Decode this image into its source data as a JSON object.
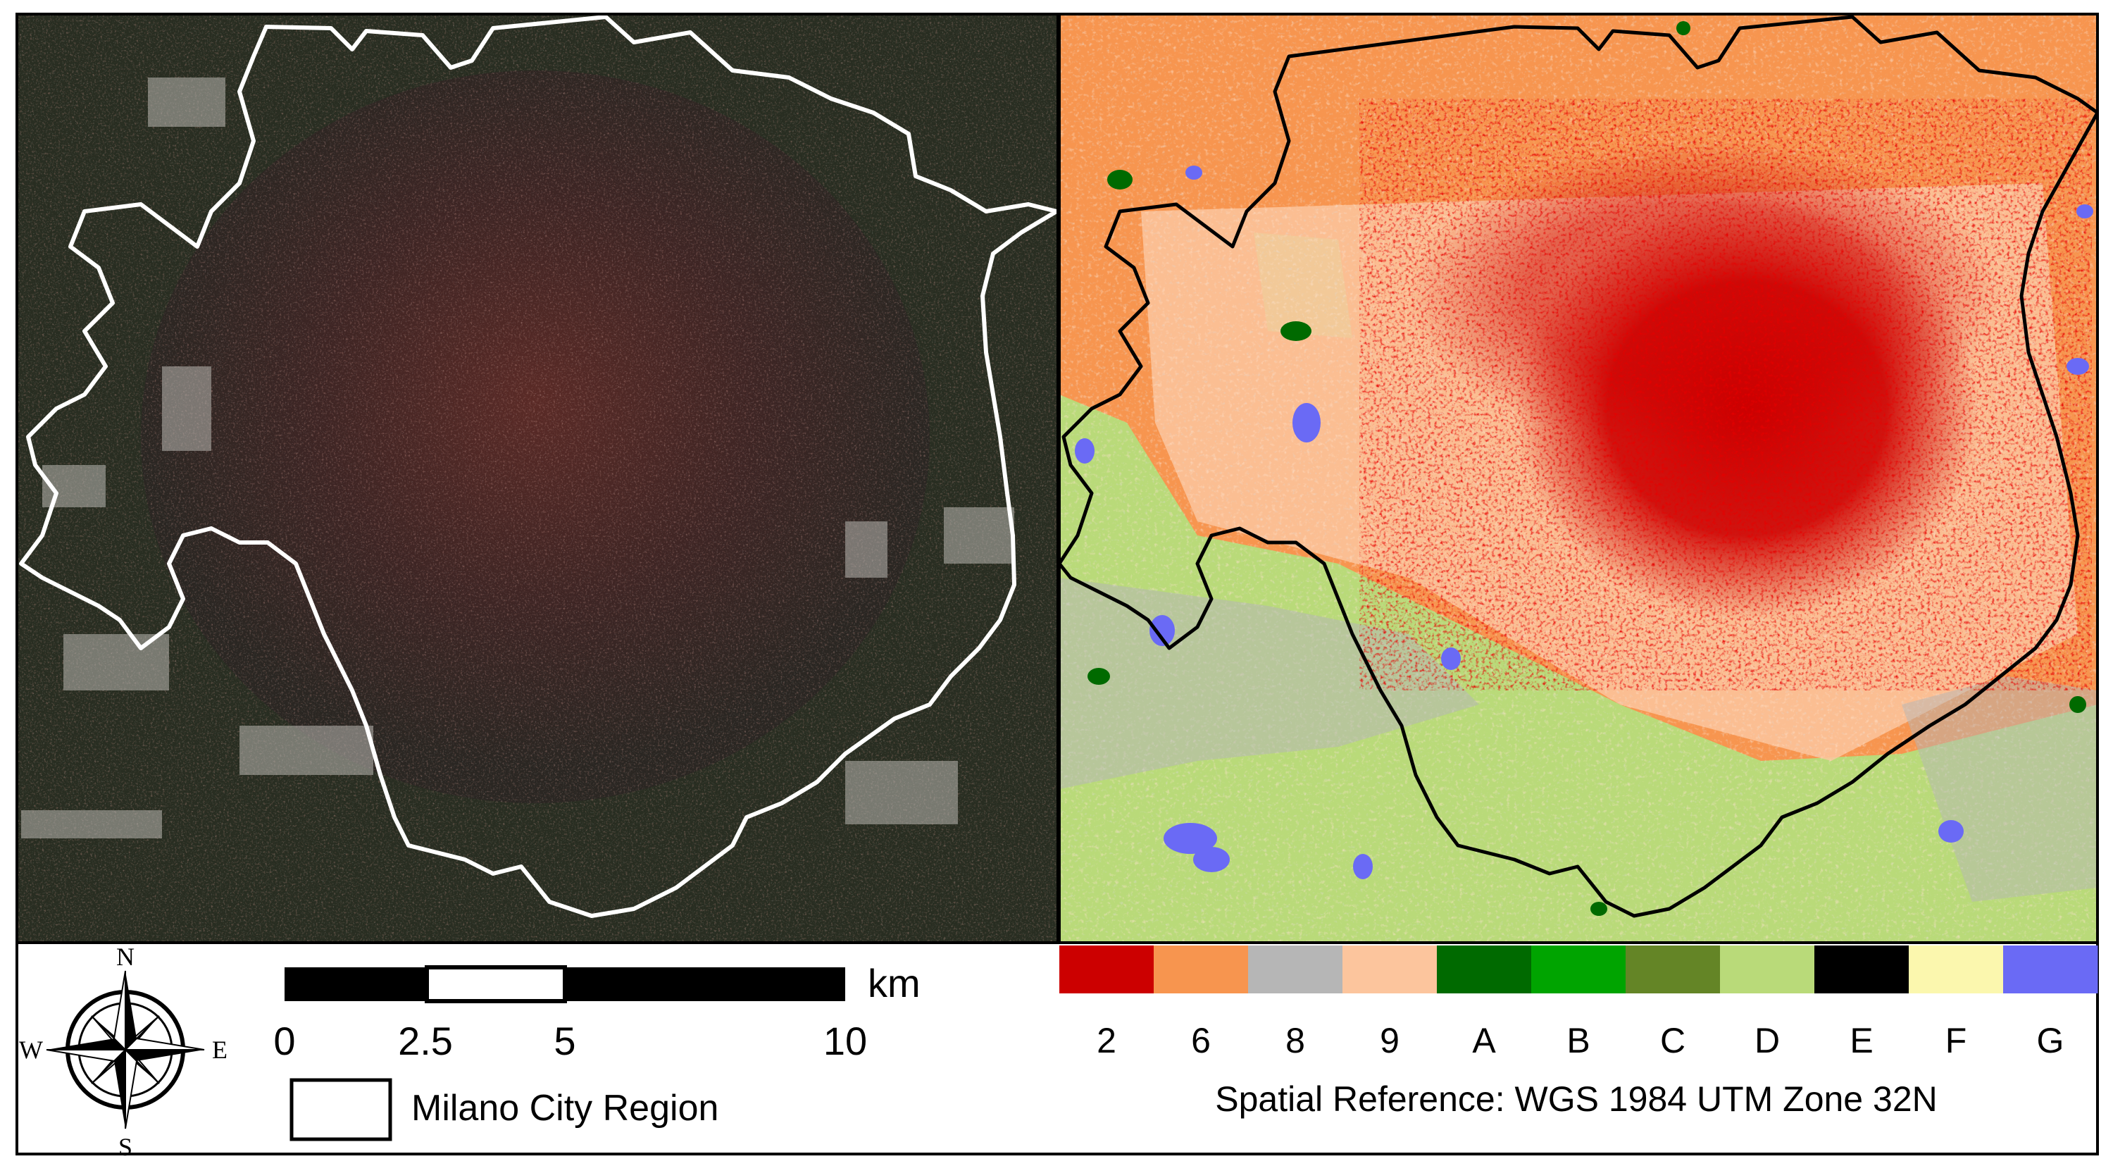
{
  "panels": {
    "left": {
      "kind": "satellite-image",
      "boundary_color": "#ffffff"
    },
    "right": {
      "kind": "lcz-classification-map",
      "boundary_color": "#000000"
    }
  },
  "north_arrow": {
    "n": "N",
    "s": "S",
    "e": "E",
    "w": "W"
  },
  "scale_bar": {
    "ticks": [
      "0",
      "2.5",
      "5",
      "10"
    ],
    "unit": "km"
  },
  "region_legend": {
    "label": "Milano City Region"
  },
  "classes": [
    {
      "code": "2",
      "color": "#cc0000"
    },
    {
      "code": "6",
      "color": "#f7954f"
    },
    {
      "code": "8",
      "color": "#b6b6b6"
    },
    {
      "code": "9",
      "color": "#fcc59d"
    },
    {
      "code": "A",
      "color": "#006a00"
    },
    {
      "code": "B",
      "color": "#00a400"
    },
    {
      "code": "C",
      "color": "#648526"
    },
    {
      "code": "D",
      "color": "#b9da79"
    },
    {
      "code": "E",
      "color": "#000000"
    },
    {
      "code": "F",
      "color": "#fbf7ae"
    },
    {
      "code": "G",
      "color": "#6a6af5"
    }
  ],
  "spatial_reference": "Spatial Reference: WGS 1984 UTM Zone 32N"
}
